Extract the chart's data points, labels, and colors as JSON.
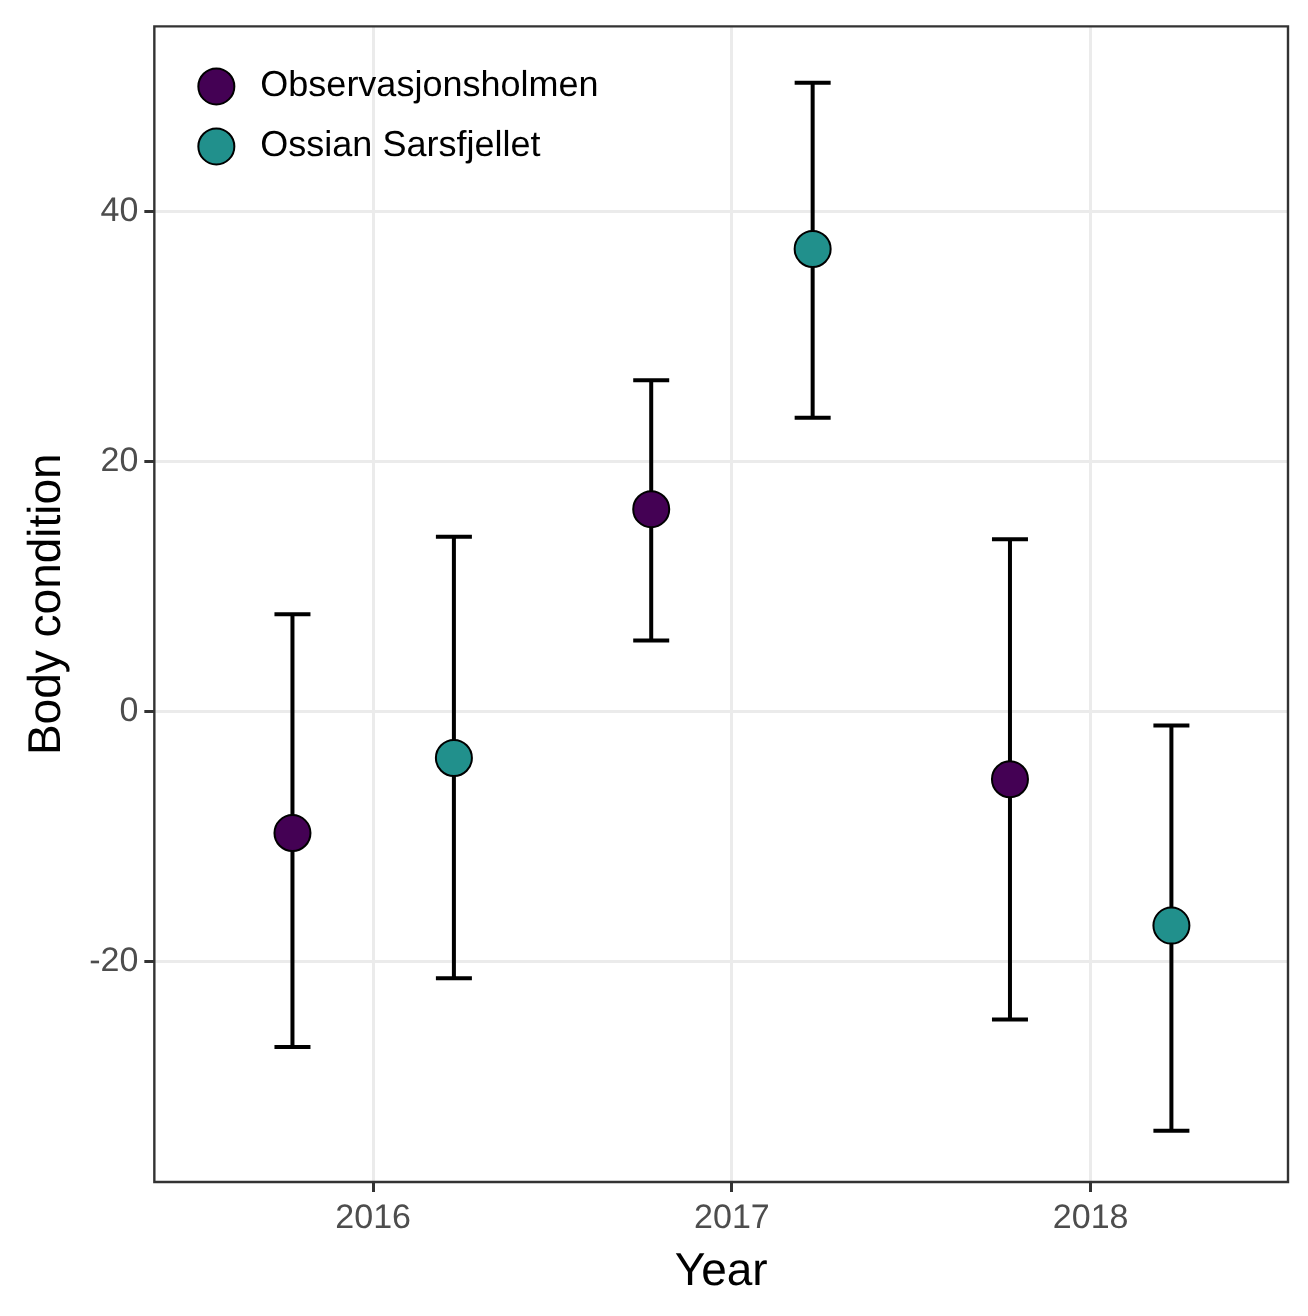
{
  "chart_data": {
    "type": "scatter",
    "xlabel": "Year",
    "ylabel": "Body condition",
    "xlim": [
      2015.39,
      2018.55
    ],
    "xticks": [
      2016,
      2017,
      2018
    ],
    "ylim": [
      -37.6,
      54.8
    ],
    "yticks": [
      -20,
      0,
      20,
      40
    ],
    "grid": true,
    "legend": "top left",
    "marker": "circle",
    "series": [
      {
        "name": "Observasjonsholmen",
        "color": "#440154",
        "x": [
          2015.775,
          2016.775,
          2017.775
        ],
        "values": [
          -9.7,
          16.2,
          -5.4
        ],
        "errors": [
          [
            -26.8,
            7.8
          ],
          [
            5.7,
            26.5
          ],
          [
            -24.6,
            13.8
          ]
        ]
      },
      {
        "name": "Ossian Sarsfjellet",
        "color": "#21908c",
        "x": [
          2016.225,
          2017.225,
          2018.225
        ],
        "values": [
          -3.7,
          37.0,
          -17.1
        ],
        "errors": [
          [
            -21.3,
            14.0
          ],
          [
            23.5,
            50.3
          ],
          [
            -33.5,
            -1.1
          ]
        ]
      }
    ]
  }
}
